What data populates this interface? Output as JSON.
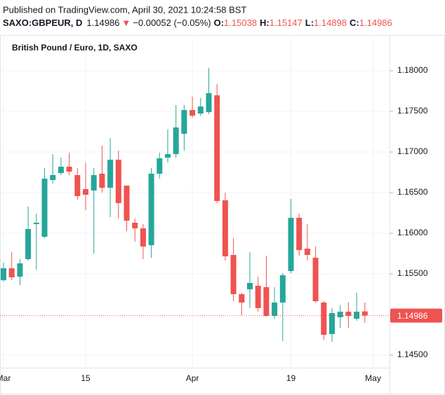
{
  "header": {
    "published": "Published on TradingView.com, April 30, 2021 10:24:58 BST",
    "symbol": "SAXO:GBPEUR, D",
    "arrow": "▼",
    "change": "−0.00052 (−0.05%)",
    "o_label": "O:",
    "h_label": "H:",
    "l_label": "L:",
    "c_label": "C:"
  },
  "chart_data": {
    "type": "candlestick",
    "title": "British Pound / Euro, 1D, SAXO",
    "categories": [
      "Mar",
      null,
      null,
      null,
      null,
      null,
      null,
      null,
      null,
      null,
      "15",
      null,
      null,
      null,
      null,
      null,
      null,
      null,
      null,
      null,
      null,
      null,
      null,
      "Apr",
      null,
      null,
      null,
      null,
      null,
      null,
      null,
      null,
      null,
      null,
      null,
      "19",
      null,
      null,
      null,
      null,
      null,
      null,
      null,
      null,
      null
    ],
    "extra_xticks": [
      {
        "value": 45,
        "label": "May"
      }
    ],
    "open": [
      1.15422,
      1.15569,
      1.15466,
      1.15681,
      1.16112,
      1.15957,
      1.16655,
      1.16741,
      1.16819,
      1.16716,
      1.16543,
      1.16526,
      1.16733,
      1.1656,
      1.16905,
      1.16586,
      1.16129,
      1.1606,
      1.15853,
      1.16733,
      1.16931,
      1.16974,
      1.17224,
      1.17517,
      1.17474,
      1.17491,
      1.17698,
      1.16405,
      1.15733,
      1.1525,
      1.1531,
      1.15353,
      1.15336,
      1.14983,
      1.15147,
      1.15534,
      1.1619,
      1.1581,
      1.15698,
      1.15147,
      1.14759,
      1.14966,
      1.15034,
      1.14948,
      1.15038
    ],
    "high": [
      1.15638,
      1.15767,
      1.15681,
      1.16328,
      1.16241,
      1.16802,
      1.16974,
      1.16931,
      1.16991,
      1.16802,
      1.16871,
      1.16802,
      1.17078,
      1.17172,
      1.17017,
      1.16586,
      1.16181,
      1.16112,
      1.16802,
      1.16991,
      1.17276,
      1.17578,
      1.17578,
      1.17681,
      1.17664,
      1.18034,
      1.17836,
      1.165,
      1.1594,
      1.15267,
      1.15767,
      1.15466,
      1.15724,
      1.15336,
      1.15509,
      1.16422,
      1.16241,
      1.16112,
      1.15836,
      1.15164,
      1.15078,
      1.15113,
      1.15147,
      1.15267,
      1.15147
    ],
    "low": [
      1.15405,
      1.15422,
      1.15362,
      1.15664,
      1.15552,
      1.1594,
      1.16612,
      1.16716,
      1.16716,
      1.16414,
      1.16284,
      1.1575,
      1.165,
      1.16198,
      1.16181,
      1.16026,
      1.15897,
      1.15681,
      1.15698,
      1.16672,
      1.16871,
      1.16931,
      1.17017,
      1.17422,
      1.17448,
      1.17466,
      1.16371,
      1.15664,
      1.15164,
      1.14992,
      1.15078,
      1.15034,
      1.14974,
      1.14948,
      1.14672,
      1.15509,
      1.15724,
      1.15664,
      1.15147,
      1.1469,
      1.14664,
      1.14836,
      1.14836,
      1.14922,
      1.14898
    ],
    "close": [
      1.15569,
      1.15457,
      1.15629,
      1.16052,
      1.16129,
      1.16672,
      1.16716,
      1.16819,
      1.16759,
      1.16457,
      1.16474,
      1.16716,
      1.1656,
      1.16905,
      1.16371,
      1.16155,
      1.1606,
      1.15836,
      1.16733,
      1.16922,
      1.16974,
      1.17302,
      1.17517,
      1.17448,
      1.1756,
      1.17724,
      1.16397,
      1.15716,
      1.1525,
      1.15147,
      1.15388,
      1.15078,
      1.14983,
      1.15147,
      1.15483,
      1.1619,
      1.15793,
      1.15733,
      1.15164,
      1.1475,
      1.15017,
      1.15034,
      1.14983,
      1.15034,
      1.14986
    ],
    "up_color": "#26a69a",
    "down_color": "#ef5350",
    "ylim": [
      1.14345,
      1.1844
    ],
    "yticks": [
      {
        "value": 1.145,
        "label": "1.14500"
      },
      {
        "value": 1.155,
        "label": "1.15500"
      },
      {
        "value": 1.16,
        "label": "1.16000"
      },
      {
        "value": 1.165,
        "label": "1.16500"
      },
      {
        "value": 1.17,
        "label": "1.17000"
      },
      {
        "value": 1.175,
        "label": "1.17500"
      },
      {
        "value": 1.18,
        "label": "1.18000"
      }
    ],
    "grid": true
  }
}
